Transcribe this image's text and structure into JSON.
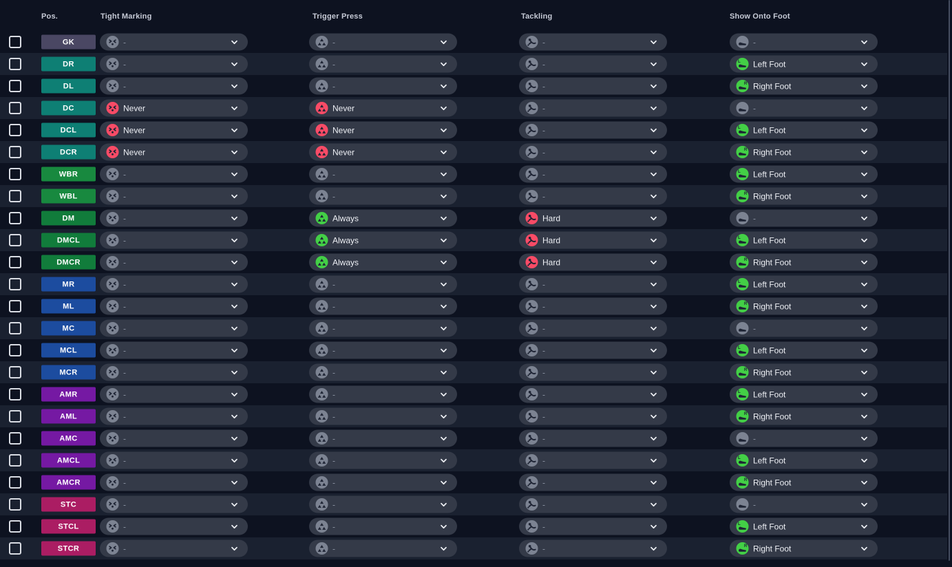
{
  "table": {
    "columns": [
      {
        "label": "Pos.",
        "icon": ""
      },
      {
        "label": "Tight Marking",
        "icon": "tight-marking-icon"
      },
      {
        "label": "Trigger Press",
        "icon": "trigger-press-icon"
      },
      {
        "label": "Tackling",
        "icon": "tackling-icon"
      },
      {
        "label": "Show Onto Foot",
        "icon": "show-onto-foot-icon"
      }
    ],
    "rows": [
      {
        "pos": "GK",
        "group": "gk",
        "tight_marking": "-",
        "trigger_press": "-",
        "tackling": "-",
        "show_onto_foot": "-"
      },
      {
        "pos": "DR",
        "group": "d",
        "tight_marking": "-",
        "trigger_press": "-",
        "tackling": "-",
        "show_onto_foot": "Left Foot"
      },
      {
        "pos": "DL",
        "group": "d",
        "tight_marking": "-",
        "trigger_press": "-",
        "tackling": "-",
        "show_onto_foot": "Right Foot"
      },
      {
        "pos": "DC",
        "group": "d",
        "tight_marking": "Never",
        "trigger_press": "Never",
        "tackling": "-",
        "show_onto_foot": "-"
      },
      {
        "pos": "DCL",
        "group": "d",
        "tight_marking": "Never",
        "trigger_press": "Never",
        "tackling": "-",
        "show_onto_foot": "Left Foot"
      },
      {
        "pos": "DCR",
        "group": "d",
        "tight_marking": "Never",
        "trigger_press": "Never",
        "tackling": "-",
        "show_onto_foot": "Right Foot"
      },
      {
        "pos": "WBR",
        "group": "wb",
        "tight_marking": "-",
        "trigger_press": "-",
        "tackling": "-",
        "show_onto_foot": "Left Foot"
      },
      {
        "pos": "WBL",
        "group": "wb",
        "tight_marking": "-",
        "trigger_press": "-",
        "tackling": "-",
        "show_onto_foot": "Right Foot"
      },
      {
        "pos": "DM",
        "group": "dm",
        "tight_marking": "-",
        "trigger_press": "Always",
        "tackling": "Hard",
        "show_onto_foot": "-"
      },
      {
        "pos": "DMCL",
        "group": "dm",
        "tight_marking": "-",
        "trigger_press": "Always",
        "tackling": "Hard",
        "show_onto_foot": "Left Foot"
      },
      {
        "pos": "DMCR",
        "group": "dm",
        "tight_marking": "-",
        "trigger_press": "Always",
        "tackling": "Hard",
        "show_onto_foot": "Right Foot"
      },
      {
        "pos": "MR",
        "group": "m",
        "tight_marking": "-",
        "trigger_press": "-",
        "tackling": "-",
        "show_onto_foot": "Left Foot"
      },
      {
        "pos": "ML",
        "group": "m",
        "tight_marking": "-",
        "trigger_press": "-",
        "tackling": "-",
        "show_onto_foot": "Right Foot"
      },
      {
        "pos": "MC",
        "group": "m",
        "tight_marking": "-",
        "trigger_press": "-",
        "tackling": "-",
        "show_onto_foot": "-"
      },
      {
        "pos": "MCL",
        "group": "m",
        "tight_marking": "-",
        "trigger_press": "-",
        "tackling": "-",
        "show_onto_foot": "Left Foot"
      },
      {
        "pos": "MCR",
        "group": "m",
        "tight_marking": "-",
        "trigger_press": "-",
        "tackling": "-",
        "show_onto_foot": "Right Foot"
      },
      {
        "pos": "AMR",
        "group": "am",
        "tight_marking": "-",
        "trigger_press": "-",
        "tackling": "-",
        "show_onto_foot": "Left Foot"
      },
      {
        "pos": "AML",
        "group": "am",
        "tight_marking": "-",
        "trigger_press": "-",
        "tackling": "-",
        "show_onto_foot": "Right Foot"
      },
      {
        "pos": "AMC",
        "group": "am",
        "tight_marking": "-",
        "trigger_press": "-",
        "tackling": "-",
        "show_onto_foot": "-"
      },
      {
        "pos": "AMCL",
        "group": "am",
        "tight_marking": "-",
        "trigger_press": "-",
        "tackling": "-",
        "show_onto_foot": "Left Foot"
      },
      {
        "pos": "AMCR",
        "group": "am",
        "tight_marking": "-",
        "trigger_press": "-",
        "tackling": "-",
        "show_onto_foot": "Right Foot"
      },
      {
        "pos": "STC",
        "group": "st",
        "tight_marking": "-",
        "trigger_press": "-",
        "tackling": "-",
        "show_onto_foot": "-"
      },
      {
        "pos": "STCL",
        "group": "st",
        "tight_marking": "-",
        "trigger_press": "-",
        "tackling": "-",
        "show_onto_foot": "Left Foot"
      },
      {
        "pos": "STCR",
        "group": "st",
        "tight_marking": "-",
        "trigger_press": "-",
        "tackling": "-",
        "show_onto_foot": "Right Foot"
      }
    ]
  },
  "colors": {
    "page_bg": "#0d1220",
    "row_alt_bg": "#1a2130",
    "pill_bg": "#343a48",
    "group_colors": {
      "gk": "#4a4763",
      "d": "#0e7f74",
      "wb": "#18893f",
      "dm": "#117c3b",
      "m": "#1c4c9f",
      "am": "#7519a3",
      "st": "#ab1d63"
    },
    "value_colors": {
      "-": "#7c8392",
      "Never": "#f94b66",
      "Always": "#43cf46",
      "Hard": "#f94b66",
      "Left Foot": "#43cf46",
      "Right Foot": "#43cf46"
    }
  }
}
